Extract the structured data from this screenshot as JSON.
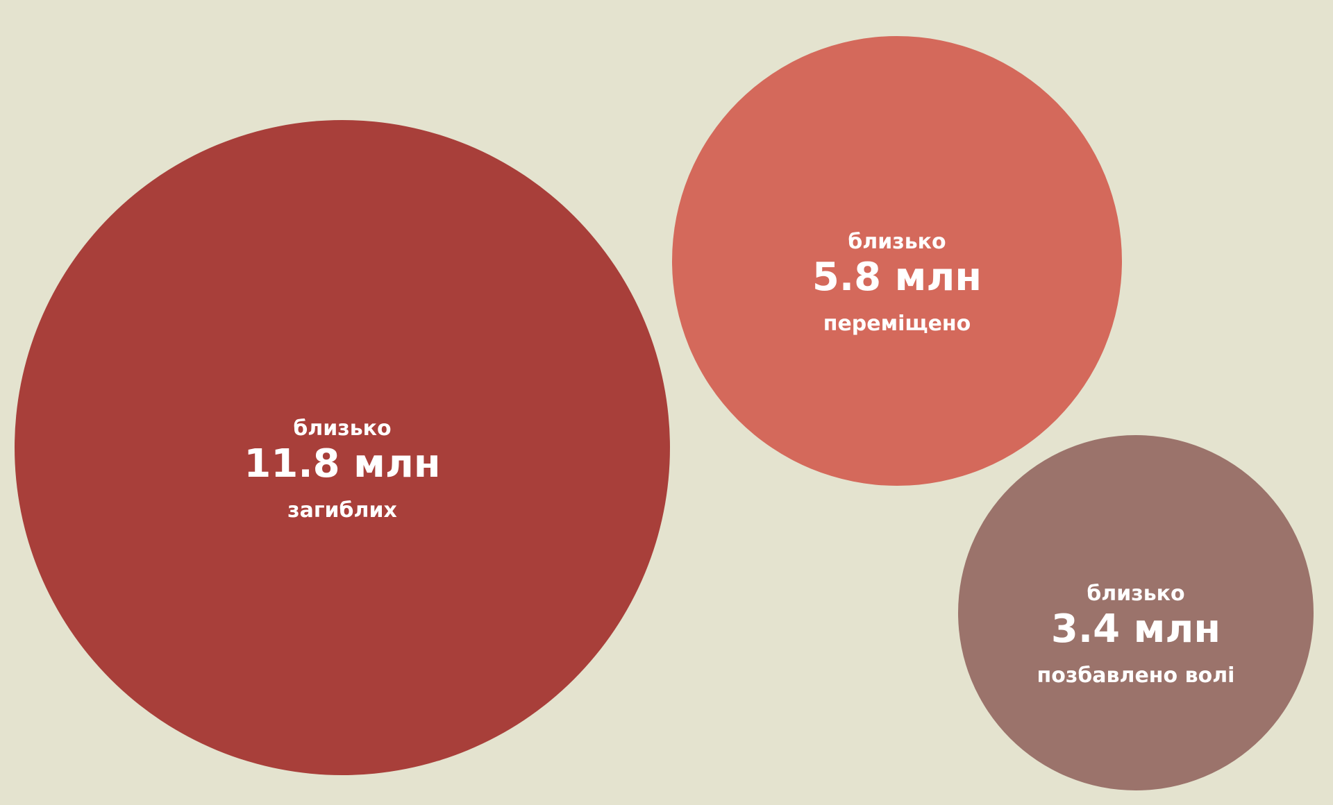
{
  "background": "#e4e3cf",
  "chart_data": {
    "type": "bubble",
    "title": "",
    "items": [
      {
        "prefix": "близько",
        "value": 11.8,
        "value_label": "11.8 млн",
        "label": "загиблих",
        "color": "#a83f3a"
      },
      {
        "prefix": "близько",
        "value": 5.8,
        "value_label": "5.8 млн",
        "label": "переміщено",
        "color": "#d4695b"
      },
      {
        "prefix": "близько",
        "value": 3.4,
        "value_label": "3.4 млн",
        "label": "позбавлено волі",
        "color": "#9b736b"
      }
    ]
  }
}
